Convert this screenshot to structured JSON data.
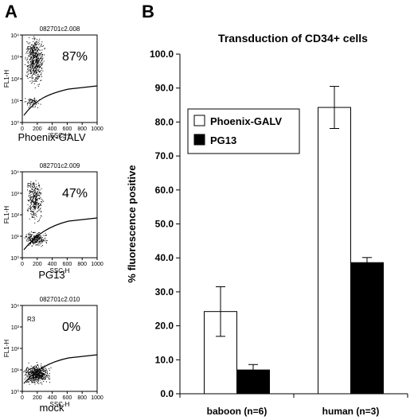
{
  "panels": {
    "a_label": "A",
    "b_label": "B"
  },
  "flow_plots": [
    {
      "sample_id": "082701c2.008",
      "gate": "R3",
      "percent": "87%",
      "caption": "Phoenix-GALV",
      "y_label": "FL1-H",
      "x_label": "SSC-H",
      "x_ticks": [
        "0",
        "200",
        "400",
        "600",
        "800",
        "1000"
      ],
      "y_ticks": [
        "10⁰",
        "10¹",
        "10²",
        "10³",
        "10⁴"
      ]
    },
    {
      "sample_id": "082701c2.009",
      "gate": "R3",
      "percent": "47%",
      "caption": "PG13",
      "y_label": "FL1-H",
      "x_label": "SSC-H",
      "x_ticks": [
        "0",
        "200",
        "400",
        "600",
        "800",
        "1000"
      ],
      "y_ticks": [
        "10⁰",
        "10¹",
        "10²",
        "10³",
        "10⁴"
      ]
    },
    {
      "sample_id": "082701c2.010",
      "gate": "R3",
      "percent": "0%",
      "caption": "mock",
      "y_label": "FL1-H",
      "x_label": "SSC-H",
      "x_ticks": [
        "0",
        "200",
        "400",
        "600",
        "800",
        "1000"
      ],
      "y_ticks": [
        "10⁰",
        "10¹",
        "10²",
        "10³",
        "10⁴"
      ]
    }
  ],
  "chart_data": {
    "type": "bar",
    "title": "Transduction of CD34+ cells",
    "ylabel": "% fluorescence positive",
    "xlabel": "",
    "categories": [
      "baboon (n=6)",
      "human (n=3)"
    ],
    "series": [
      {
        "name": "Phoenix-GALV",
        "values": [
          24.2,
          84.3
        ],
        "errors": [
          7.3,
          6.2
        ],
        "color": "#ffffff"
      },
      {
        "name": "PG13",
        "values": [
          7.0,
          38.6
        ],
        "errors": [
          1.6,
          1.5
        ],
        "color": "#000000"
      }
    ],
    "ylim": [
      0,
      100
    ],
    "yticks": [
      "0.0",
      "10.0",
      "20.0",
      "30.0",
      "40.0",
      "50.0",
      "60.0",
      "70.0",
      "80.0",
      "90.0",
      "100.0"
    ],
    "grid": false,
    "legend_position": "upper-left"
  }
}
